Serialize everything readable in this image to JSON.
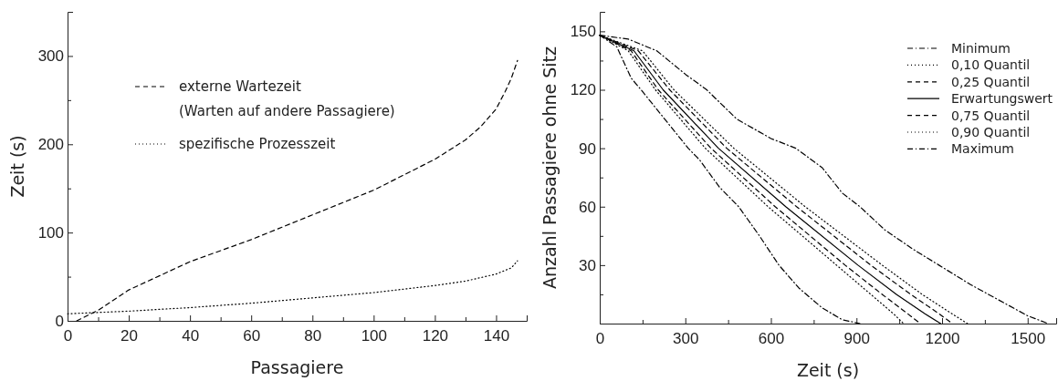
{
  "chart_data": [
    {
      "type": "line",
      "xlabel": "Passagiere",
      "ylabel": "Zeit (s)",
      "xlim": [
        0,
        150
      ],
      "ylim": [
        0,
        350
      ],
      "xticks": [
        0,
        {
          "value": 10,
          "label": null
        },
        20,
        {
          "value": 30,
          "label": null
        },
        40,
        {
          "value": 50,
          "label": null
        },
        60,
        {
          "value": 70,
          "label": null
        },
        80,
        {
          "value": 90,
          "label": null
        },
        100,
        {
          "value": 110,
          "label": null
        },
        120,
        {
          "value": 130,
          "label": null
        },
        140
      ],
      "yticks": [
        0,
        {
          "value": 50,
          "label": null
        },
        100,
        {
          "value": 150,
          "label": null
        },
        200,
        {
          "value": 250,
          "label": null
        },
        300
      ],
      "legend": "top left",
      "grid": false,
      "series": [
        {
          "name": "externe Wartezeit\n(Warten auf andere Passagiere)",
          "color": "#000000",
          "line_style": "dashed",
          "x": [
            3,
            10,
            20,
            40,
            60,
            80,
            100,
            120,
            130,
            135,
            140,
            143,
            145,
            147
          ],
          "values": [
            0,
            12,
            35,
            67,
            92,
            120,
            148,
            183,
            205,
            220,
            240,
            260,
            275,
            295
          ]
        },
        {
          "name": "spezifische Prozesszeit",
          "color": "#000000",
          "line_style": "dotted",
          "x": [
            0,
            20,
            40,
            60,
            80,
            100,
            120,
            130,
            140,
            145,
            147
          ],
          "values": [
            8,
            11,
            15,
            20,
            26,
            32,
            40,
            45,
            53,
            60,
            68
          ]
        }
      ]
    },
    {
      "type": "line",
      "xlabel": "Zeit (s)",
      "ylabel": "Anzahl Passagiere ohne Sitz",
      "xlim": [
        0,
        1600
      ],
      "ylim": [
        0,
        160
      ],
      "xticks": [
        0,
        {
          "value": 150,
          "label": null
        },
        300,
        {
          "value": 450,
          "label": null
        },
        600,
        {
          "value": 750,
          "label": null
        },
        900,
        {
          "value": 1050,
          "label": null
        },
        1200,
        {
          "value": 1350,
          "label": null
        },
        1500
      ],
      "yticks": [
        {
          "value": 15,
          "label": null
        },
        30,
        {
          "value": 45,
          "label": null
        },
        60,
        {
          "value": 75,
          "label": null
        },
        90,
        {
          "value": 105,
          "label": null
        },
        120,
        {
          "value": 135,
          "label": null
        },
        150
      ],
      "legend": "top right",
      "grid": false,
      "series": [
        {
          "name": "Minimum",
          "color": "#000000",
          "line_style": "dashdot",
          "x": [
            0,
            60,
            110,
            145,
            200,
            310,
            350,
            420,
            487,
            560,
            628,
            700,
            780,
            850,
            912
          ],
          "values": [
            148,
            142,
            126,
            120,
            110,
            90,
            84,
            70,
            60,
            45,
            30,
            18,
            8,
            2,
            0
          ]
        },
        {
          "name": "0,10 Quantil",
          "color": "#000000",
          "line_style": "dotted",
          "x": [
            0,
            100,
            195,
            370,
            590,
            830,
            950,
            1030,
            1065
          ],
          "values": [
            148,
            140,
            120,
            90,
            60,
            30,
            15,
            5,
            0
          ]
        },
        {
          "name": "0,25 Quantil",
          "color": "#000000",
          "line_style": "dashed",
          "x": [
            0,
            110,
            205,
            390,
            615,
            860,
            990,
            1080,
            1124
          ],
          "values": [
            148,
            140,
            120,
            90,
            60,
            30,
            15,
            5,
            0
          ]
        },
        {
          "name": "Erwartungswert",
          "color": "#000000",
          "line_style": "solid",
          "x": [
            0,
            120,
            222,
            416,
            652,
            905,
            1040,
            1140,
            1195
          ],
          "values": [
            148,
            140,
            120,
            90,
            60,
            30,
            15,
            5,
            0
          ]
        },
        {
          "name": "0,75 Quantil",
          "color": "#000000",
          "line_style": "dashed",
          "x": [
            0,
            135,
            245,
            445,
            690,
            950,
            1090,
            1190,
            1236
          ],
          "values": [
            148,
            140,
            120,
            90,
            60,
            30,
            15,
            5,
            0
          ]
        },
        {
          "name": "0,90 Quantil",
          "color": "#000000",
          "line_style": "dotted",
          "x": [
            0,
            150,
            260,
            470,
            720,
            990,
            1130,
            1235,
            1289
          ],
          "values": [
            148,
            140,
            120,
            90,
            60,
            30,
            15,
            5,
            0
          ]
        },
        {
          "name": "Maximum",
          "color": "#000000",
          "line_style": "dashdot",
          "x": [
            0,
            100,
            200,
            300,
            375,
            480,
            600,
            687,
            780,
            850,
            912,
            1000,
            1100,
            1189,
            1300,
            1400,
            1500,
            1572
          ],
          "values": [
            148,
            146,
            140,
            128,
            120,
            105,
            95,
            90,
            80,
            67,
            60,
            48,
            38,
            30,
            20,
            12,
            4,
            0
          ]
        }
      ]
    }
  ]
}
